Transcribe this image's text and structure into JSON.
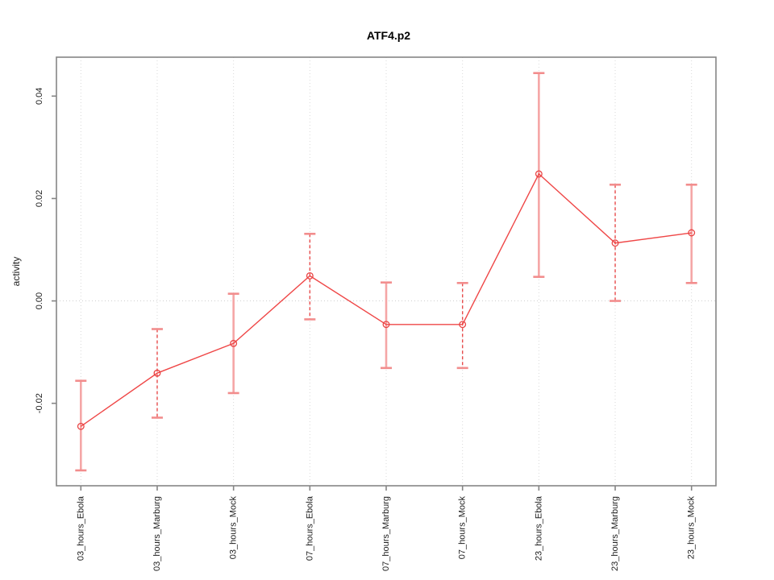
{
  "chart_data": {
    "type": "line",
    "title": "ATF4.p2",
    "xlabel": "",
    "ylabel": "activity",
    "legend": null,
    "grid": "vertical-dotted-per-category",
    "zero_line_dotted": true,
    "categories": [
      "03_hours_Ebola",
      "03_hours_Marburg",
      "03_hours_Mock",
      "07_hours_Ebola",
      "07_hours_Marburg",
      "07_hours_Mock",
      "23_hours_Ebola",
      "23_hours_Marburg",
      "23_hours_Mock"
    ],
    "series": [
      {
        "name": "activity",
        "means": [
          -0.0245,
          -0.0141,
          -0.0083,
          0.0049,
          -0.0046,
          -0.0046,
          0.0248,
          0.0113,
          0.0133
        ],
        "ci_upper": [
          -0.0156,
          -0.0055,
          0.0014,
          0.0131,
          0.0036,
          0.0035,
          0.0445,
          0.0227,
          0.0227
        ],
        "ci_lower": [
          -0.0331,
          -0.0228,
          -0.018,
          -0.0036,
          -0.0131,
          -0.0131,
          0.0047,
          0.0,
          0.0035
        ]
      }
    ],
    "yticks": [
      -0.02,
      0.0,
      0.02,
      0.04
    ],
    "ytick_labels": [
      "-0.02",
      "0.00",
      "0.02",
      "0.04"
    ],
    "ylim": [
      -0.0361,
      0.0476
    ]
  },
  "colors": {
    "series_line": "#ef4747",
    "point_stroke": "#e94444",
    "errorbar_solid": "#f5a6a6",
    "errorbar_dashed": "#e84c4c",
    "errorbar_cap": "#f28d8d",
    "gridline": "#d9d9d9",
    "zero_line": "#cfcfcf",
    "axis": "#858585",
    "tick_text": "#1d1d1d",
    "background": "#ffffff"
  }
}
